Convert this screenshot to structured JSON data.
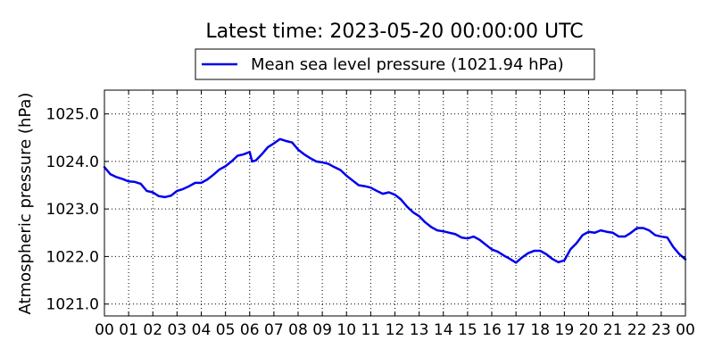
{
  "chart_data": {
    "type": "line",
    "title": "Latest time: 2023-05-20 00:00:00 UTC",
    "xlabel": "",
    "ylabel": "Atmospheric pressure (hPa)",
    "grid": true,
    "legend_position": "top-center",
    "xlim": [
      0,
      24
    ],
    "ylim": [
      1020.75,
      1025.5
    ],
    "x_ticks": [
      0,
      1,
      2,
      3,
      4,
      5,
      6,
      7,
      8,
      9,
      10,
      11,
      12,
      13,
      14,
      15,
      16,
      17,
      18,
      19,
      20,
      21,
      22,
      23,
      24
    ],
    "x_tick_labels": [
      "00",
      "01",
      "02",
      "03",
      "04",
      "05",
      "06",
      "07",
      "08",
      "09",
      "10",
      "11",
      "12",
      "13",
      "14",
      "15",
      "16",
      "17",
      "18",
      "19",
      "20",
      "21",
      "22",
      "23",
      "00"
    ],
    "y_ticks": [
      1021.0,
      1022.0,
      1023.0,
      1024.0,
      1025.0
    ],
    "y_tick_labels": [
      "1021.0",
      "1022.0",
      "1023.0",
      "1024.0",
      "1025.0"
    ],
    "colors": {
      "series": "#0000ee",
      "grid": "#000000",
      "axes": "#000000"
    },
    "series": [
      {
        "name": "Mean sea level pressure (1021.94 hPa)",
        "x": [
          0,
          0.25,
          0.5,
          0.75,
          1,
          1.25,
          1.5,
          1.75,
          2,
          2.25,
          2.5,
          2.75,
          3,
          3.25,
          3.5,
          3.75,
          4,
          4.25,
          4.5,
          4.75,
          5,
          5.25,
          5.5,
          5.75,
          6,
          6.1,
          6.25,
          6.5,
          6.75,
          7,
          7.25,
          7.5,
          7.75,
          8,
          8.25,
          8.5,
          8.75,
          9,
          9.25,
          9.5,
          9.75,
          10,
          10.25,
          10.5,
          10.75,
          11,
          11.25,
          11.5,
          11.75,
          12,
          12.25,
          12.5,
          12.75,
          13,
          13.25,
          13.5,
          13.75,
          14,
          14.25,
          14.5,
          14.75,
          15,
          15.25,
          15.5,
          15.75,
          16,
          16.25,
          16.5,
          16.75,
          17,
          17.25,
          17.5,
          17.75,
          18,
          18.25,
          18.5,
          18.75,
          19,
          19.25,
          19.5,
          19.75,
          20,
          20.25,
          20.5,
          20.75,
          21,
          21.25,
          21.5,
          21.75,
          22,
          22.25,
          22.5,
          22.75,
          23,
          23.25,
          23.5,
          23.75,
          24
        ],
        "y": [
          1023.88,
          1023.73,
          1023.67,
          1023.63,
          1023.58,
          1023.57,
          1023.53,
          1023.38,
          1023.35,
          1023.27,
          1023.25,
          1023.28,
          1023.38,
          1023.42,
          1023.48,
          1023.55,
          1023.55,
          1023.62,
          1023.72,
          1023.83,
          1023.9,
          1024.0,
          1024.12,
          1024.15,
          1024.2,
          1024.0,
          1024.02,
          1024.15,
          1024.3,
          1024.38,
          1024.47,
          1024.43,
          1024.4,
          1024.25,
          1024.15,
          1024.07,
          1024.0,
          1023.98,
          1023.95,
          1023.88,
          1023.82,
          1023.7,
          1023.6,
          1023.5,
          1023.48,
          1023.45,
          1023.38,
          1023.32,
          1023.35,
          1023.3,
          1023.2,
          1023.05,
          1022.93,
          1022.85,
          1022.72,
          1022.62,
          1022.55,
          1022.53,
          1022.5,
          1022.47,
          1022.4,
          1022.38,
          1022.42,
          1022.35,
          1022.25,
          1022.15,
          1022.1,
          1022.02,
          1021.95,
          1021.87,
          1021.98,
          1022.07,
          1022.12,
          1022.12,
          1022.05,
          1021.95,
          1021.88,
          1021.92,
          1022.15,
          1022.28,
          1022.45,
          1022.52,
          1022.5,
          1022.55,
          1022.52,
          1022.5,
          1022.42,
          1022.42,
          1022.5,
          1022.6,
          1022.6,
          1022.55,
          1022.45,
          1022.42,
          1022.4,
          1022.2,
          1022.05,
          1021.94
        ]
      }
    ]
  }
}
